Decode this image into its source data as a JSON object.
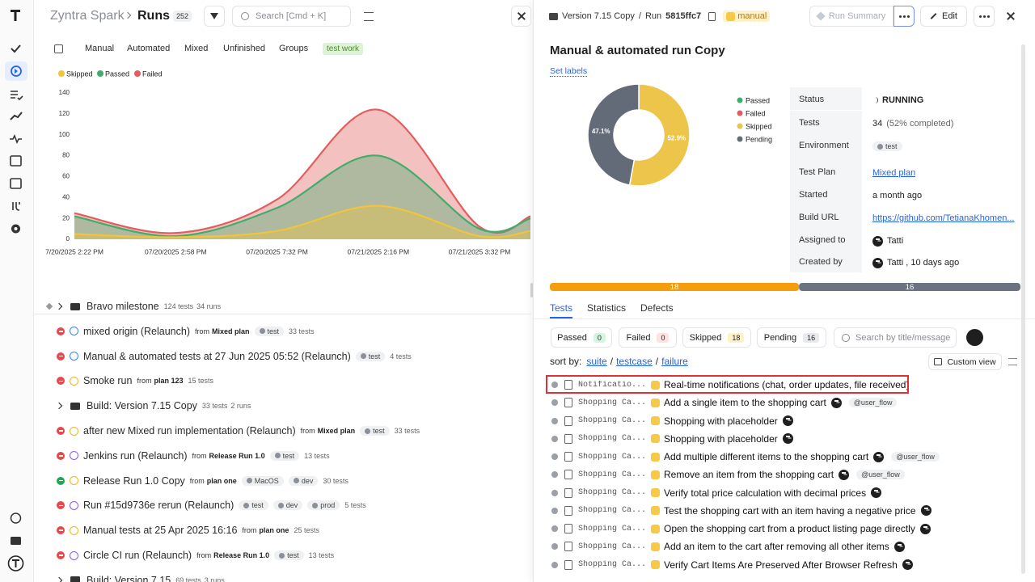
{
  "header": {
    "project": "Zyntra Spark",
    "section": "Runs",
    "count": 252,
    "search": "Search [Cmd + K]"
  },
  "tabs": [
    "Manual",
    "Automated",
    "Mixed",
    "Unfinished",
    "Groups",
    "test work"
  ],
  "chart_data": [
    {
      "type": "area",
      "categories": [
        "7/20/2025 2:22 PM",
        "07/20/2025 2:58 PM",
        "07/20/2025 7:32 PM",
        "07/21/2025 2:16 PM",
        "07/21/2025 3:32 PM",
        null
      ],
      "series": [
        {
          "name": "Skipped",
          "color": "#f0c43c",
          "values": [
            5,
            2,
            8,
            32,
            3,
            8
          ]
        },
        {
          "name": "Passed",
          "color": "#3fae6a",
          "values": [
            22,
            3,
            30,
            80,
            10,
            20
          ]
        },
        {
          "name": "Failed",
          "color": "#e35d5d",
          "values": [
            25,
            6,
            38,
            124,
            12,
            22
          ]
        }
      ],
      "ylim": [
        0,
        140
      ],
      "yticks": [
        0,
        20,
        40,
        60,
        80,
        100,
        120,
        140
      ],
      "grid": false,
      "legend": "top-left"
    },
    {
      "type": "pie",
      "categories": [
        "Passed",
        "Failed",
        "Skipped",
        "Pending"
      ],
      "colors": [
        "#3fae6a",
        "#e35d5d",
        "#ecc54a",
        "#646b78"
      ],
      "values": [
        0,
        0,
        52.9,
        47.1
      ],
      "value_labels": [
        null,
        null,
        "52.9%",
        "47.1%"
      ],
      "legend": "right"
    }
  ],
  "words": {
    "from": "from"
  },
  "runs": [
    {
      "title": "Bravo milestone",
      "tests": "124 tests",
      "runs": "34 runs"
    },
    {
      "title": "mixed origin (Relaunch)",
      "plan": "Mixed plan",
      "tags": [
        "test"
      ],
      "tests": "33 tests",
      "status_color": "#e5484d",
      "icon_color": "#3b82f6"
    },
    {
      "title": "Manual & automated tests at 27 Jun 2025 05:52 (Relaunch)",
      "tags": [
        "test"
      ],
      "tests": "4 tests",
      "status_color": "#e5484d",
      "icon_color": "#3b82f6"
    },
    {
      "title": "Smoke run",
      "plan": "plan 123",
      "tests": "15 tests",
      "status_color": "#e5484d",
      "icon_color": "#f0b429"
    },
    {
      "title": "Build: Version 7.15 Copy",
      "tests": "33 tests",
      "runs": "2 runs"
    },
    {
      "title": "after new Mixed run implementation (Relaunch)",
      "plan": "Mixed plan",
      "tags": [
        "test"
      ],
      "tests": "33 tests",
      "status_color": "#e5484d",
      "icon_color": "#f0b429"
    },
    {
      "title": "Jenkins run (Relaunch)",
      "plan": "Release Run 1.0",
      "tags": [
        "test"
      ],
      "tests": "13 tests",
      "status_color": "#e5484d",
      "icon_color": "#8b5cf6"
    },
    {
      "title": "Release Run 1.0 Copy",
      "plan": "plan one",
      "tags": [
        "MacOS",
        "dev"
      ],
      "tests": "30 tests",
      "status_color": "#22a559",
      "icon_color": "#f0b429"
    },
    {
      "title": "Run #15d9736e rerun (Relaunch)",
      "tags": [
        "test",
        "dev",
        "prod"
      ],
      "tests": "5 tests",
      "status_color": "#e5484d",
      "icon_color": "#8b5cf6"
    },
    {
      "title": "Manual tests at 25 Apr 2025 16:16",
      "plan": "plan one",
      "tests": "25 tests",
      "status_color": "#e5484d",
      "icon_color": "#f0b429"
    },
    {
      "title": "Circle CI run (Relaunch)",
      "plan": "Release Run 1.0",
      "tags": [
        "test"
      ],
      "tests": "13 tests",
      "status_color": "#e5484d",
      "icon_color": "#8b5cf6"
    },
    {
      "title": "Build: Version 7.15",
      "tests": "69 tests",
      "runs": "3 runs"
    }
  ],
  "panel": {
    "breadcrumb": {
      "version": "Version 7.15 Copy",
      "sep": "/",
      "run": "Run",
      "id": "5815ffc7",
      "type": "manual"
    },
    "buttons": {
      "summary": "Run Summary",
      "edit": "Edit"
    },
    "title": "Manual & automated run Copy",
    "set_labels": "Set labels",
    "details": [
      {
        "label": "Status",
        "value": "RUNNING"
      },
      {
        "label": "Tests",
        "value": "34",
        "note": "(52% completed)"
      },
      {
        "label": "Environment",
        "tag": "test"
      },
      {
        "label": "Test Plan",
        "link": "Mixed plan"
      },
      {
        "label": "Started",
        "value": "a month ago"
      },
      {
        "label": "Build URL",
        "link": "https://github.com/TetianaKhomen..."
      },
      {
        "label": "Assigned to",
        "value": "Tatti"
      },
      {
        "label": "Created by",
        "value": "Tatti , 10 days ago"
      }
    ],
    "progress": [
      {
        "value": 18,
        "color": "#f59e0b"
      },
      {
        "value": 16,
        "color": "#6b7280"
      }
    ],
    "tabs": [
      "Tests",
      "Statistics",
      "Defects"
    ],
    "filters": [
      {
        "name": "Passed",
        "count": 0,
        "color": "#d6f5e0"
      },
      {
        "name": "Failed",
        "count": 0,
        "color": "#fde2e2"
      },
      {
        "name": "Skipped",
        "count": 18,
        "color": "#fdf1c7"
      },
      {
        "name": "Pending",
        "count": 16,
        "color": "#e8eaed"
      }
    ],
    "search": "Search by title/message",
    "sort": {
      "label": "sort by:",
      "sep": "/",
      "options": [
        "suite",
        "testcase",
        "failure"
      ]
    },
    "custom_view": "Custom view",
    "tests": [
      {
        "suite": "Notificatio...",
        "title": "Real-time notifications (chat, order updates, file received)"
      },
      {
        "suite": "Shopping Ca...",
        "title": "Add a single item to the shopping cart",
        "tag": "@user_flow"
      },
      {
        "suite": "Shopping Ca...",
        "title": "Shopping with placeholder"
      },
      {
        "suite": "Shopping Ca...",
        "title": "Shopping with placeholder"
      },
      {
        "suite": "Shopping Ca...",
        "title": "Add multiple different items to the shopping cart",
        "tag": "@user_flow"
      },
      {
        "suite": "Shopping Ca...",
        "title": "Remove an item from the shopping cart",
        "tag": "@user_flow"
      },
      {
        "suite": "Shopping Ca...",
        "title": "Verify total price calculation with decimal prices"
      },
      {
        "suite": "Shopping Ca...",
        "title": "Test the shopping cart with an item having a negative price"
      },
      {
        "suite": "Shopping Ca...",
        "title": "Open the shopping cart from a product listing page directly"
      },
      {
        "suite": "Shopping Ca...",
        "title": "Add an item to the cart after removing all other items"
      },
      {
        "suite": "Shopping Ca...",
        "title": "Verify Cart Items Are Preserved After Browser Refresh"
      }
    ]
  }
}
